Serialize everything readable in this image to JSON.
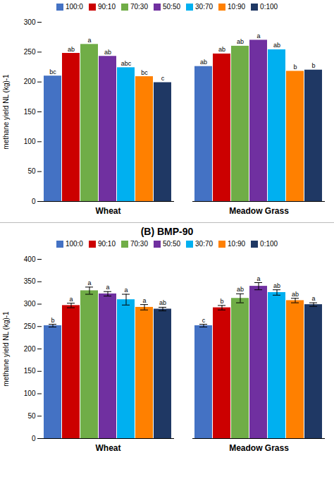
{
  "chart_data": [
    {
      "type": "bar",
      "categories": [
        "Wheat",
        "Meadow Grass"
      ],
      "series": [
        {
          "name": "100:0",
          "color": "#4472C4",
          "values": [
            210,
            226
          ],
          "labels": [
            "bc",
            "ab"
          ]
        },
        {
          "name": "90:10",
          "color": "#CC0000",
          "values": [
            248,
            247
          ],
          "labels": [
            "ab",
            "ab"
          ]
        },
        {
          "name": "70:30",
          "color": "#70AD47",
          "values": [
            263,
            260
          ],
          "labels": [
            "a",
            "ab"
          ]
        },
        {
          "name": "50:50",
          "color": "#7030A0",
          "values": [
            243,
            270
          ],
          "labels": [
            "ab",
            "a"
          ]
        },
        {
          "name": "30:70",
          "color": "#00B0F0",
          "values": [
            224,
            254
          ],
          "labels": [
            "abc",
            "ab"
          ]
        },
        {
          "name": "10:90",
          "color": "#FF8000",
          "values": [
            209,
            218
          ],
          "labels": [
            "bc",
            "b"
          ]
        },
        {
          "name": "0:100",
          "color": "#1F3864",
          "values": [
            199,
            220
          ],
          "labels": [
            "c",
            "b"
          ]
        }
      ],
      "y_label": "methane yield NL (kg)-1",
      "ylim": [
        0,
        300
      ],
      "yticks": [
        0,
        50,
        100,
        150,
        200,
        250,
        300
      ],
      "grid": false,
      "legend": "top"
    },
    {
      "type": "bar",
      "title": "(B) BMP-90",
      "categories": [
        "Wheat",
        "Meadow Grass"
      ],
      "series": [
        {
          "name": "100:0",
          "color": "#4472C4",
          "values": [
            252,
            252
          ],
          "errors": [
            3,
            3
          ],
          "labels": [
            "b",
            "c"
          ]
        },
        {
          "name": "90:10",
          "color": "#CC0000",
          "values": [
            297,
            292
          ],
          "errors": [
            5,
            5
          ],
          "labels": [
            "a",
            "b"
          ]
        },
        {
          "name": "70:30",
          "color": "#70AD47",
          "values": [
            330,
            313
          ],
          "errors": [
            8,
            10
          ],
          "labels": [
            "a",
            "ab"
          ]
        },
        {
          "name": "50:50",
          "color": "#7030A0",
          "values": [
            323,
            340
          ],
          "errors": [
            5,
            8
          ],
          "labels": [
            "a",
            "a"
          ]
        },
        {
          "name": "30:70",
          "color": "#00B0F0",
          "values": [
            310,
            326
          ],
          "errors": [
            12,
            6
          ],
          "labels": [
            "a",
            "ab"
          ]
        },
        {
          "name": "10:90",
          "color": "#FF8000",
          "values": [
            293,
            308
          ],
          "errors": [
            6,
            5
          ],
          "labels": [
            "a",
            "ab"
          ]
        },
        {
          "name": "0:100",
          "color": "#1F3864",
          "values": [
            289,
            299
          ],
          "errors": [
            4,
            4
          ],
          "labels": [
            "ab",
            "a"
          ]
        }
      ],
      "y_label": "methane yield NL (kg)-1",
      "ylim": [
        0,
        400
      ],
      "yticks": [
        0,
        50,
        100,
        150,
        200,
        250,
        300,
        350,
        400
      ],
      "grid": false,
      "legend": "top"
    }
  ]
}
